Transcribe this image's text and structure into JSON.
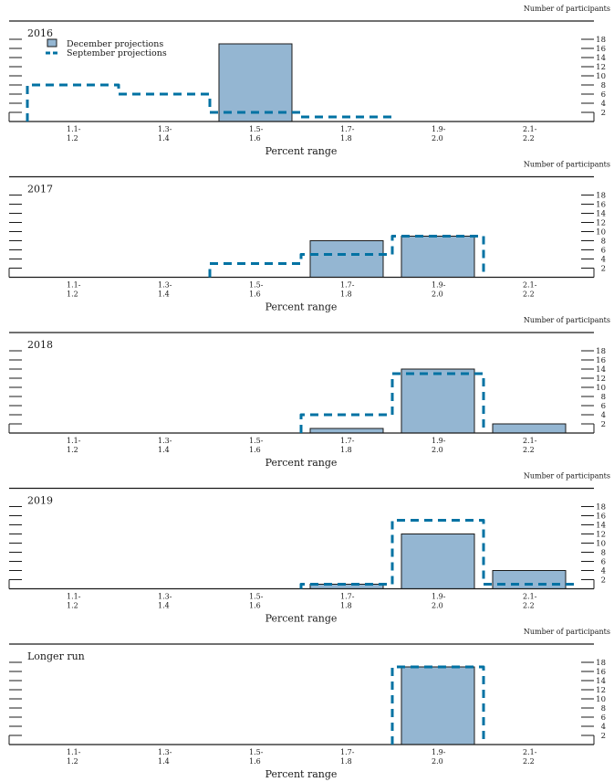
{
  "colors": {
    "december_fill": "#94b6d2",
    "december_stroke": "#1a1a1a",
    "september_line": "#0072a3",
    "axis": "#1a1a1a"
  },
  "legend": {
    "december": "December projections",
    "september": "September projections"
  },
  "chart_data": [
    {
      "type": "bar",
      "title": "2016",
      "xlabel": "Percent range",
      "ylabel": "Number of participants",
      "categories": [
        "1.1-1.2",
        "1.3-1.4",
        "1.5-1.6",
        "1.7-1.8",
        "1.9-2.0",
        "2.1-2.2"
      ],
      "category_labels": [
        [
          "1.1-",
          "1.2"
        ],
        [
          "1.3-",
          "1.4"
        ],
        [
          "1.5-",
          "1.6"
        ],
        [
          "1.7-",
          "1.8"
        ],
        [
          "1.9-",
          "2.0"
        ],
        [
          "2.1-",
          "2.2"
        ]
      ],
      "yticks": [
        2,
        4,
        6,
        8,
        10,
        12,
        14,
        16,
        18
      ],
      "ylim": [
        0,
        18
      ],
      "legend_position": "top-left",
      "series": [
        {
          "name": "December projections",
          "style": "bar",
          "values": [
            0,
            0,
            17,
            0,
            0,
            0
          ]
        },
        {
          "name": "September projections",
          "style": "dashed-step",
          "values": [
            8,
            6,
            2,
            1,
            0,
            0
          ]
        }
      ]
    },
    {
      "type": "bar",
      "title": "2017",
      "xlabel": "Percent range",
      "ylabel": "Number of participants",
      "categories": [
        "1.1-1.2",
        "1.3-1.4",
        "1.5-1.6",
        "1.7-1.8",
        "1.9-2.0",
        "2.1-2.2"
      ],
      "category_labels": [
        [
          "1.1-",
          "1.2"
        ],
        [
          "1.3-",
          "1.4"
        ],
        [
          "1.5-",
          "1.6"
        ],
        [
          "1.7-",
          "1.8"
        ],
        [
          "1.9-",
          "2.0"
        ],
        [
          "2.1-",
          "2.2"
        ]
      ],
      "yticks": [
        2,
        4,
        6,
        8,
        10,
        12,
        14,
        16,
        18
      ],
      "ylim": [
        0,
        18
      ],
      "series": [
        {
          "name": "December projections",
          "style": "bar",
          "values": [
            0,
            0,
            0,
            8,
            9,
            0
          ]
        },
        {
          "name": "September projections",
          "style": "dashed-step",
          "values": [
            0,
            0,
            3,
            5,
            9,
            0
          ]
        }
      ]
    },
    {
      "type": "bar",
      "title": "2018",
      "xlabel": "Percent range",
      "ylabel": "Number of participants",
      "categories": [
        "1.1-1.2",
        "1.3-1.4",
        "1.5-1.6",
        "1.7-1.8",
        "1.9-2.0",
        "2.1-2.2"
      ],
      "category_labels": [
        [
          "1.1-",
          "1.2"
        ],
        [
          "1.3-",
          "1.4"
        ],
        [
          "1.5-",
          "1.6"
        ],
        [
          "1.7-",
          "1.8"
        ],
        [
          "1.9-",
          "2.0"
        ],
        [
          "2.1-",
          "2.2"
        ]
      ],
      "yticks": [
        2,
        4,
        6,
        8,
        10,
        12,
        14,
        16,
        18
      ],
      "ylim": [
        0,
        18
      ],
      "series": [
        {
          "name": "December projections",
          "style": "bar",
          "values": [
            0,
            0,
            0,
            1,
            14,
            2
          ]
        },
        {
          "name": "September projections",
          "style": "dashed-step",
          "values": [
            0,
            0,
            0,
            4,
            13,
            0
          ]
        }
      ]
    },
    {
      "type": "bar",
      "title": "2019",
      "xlabel": "Percent range",
      "ylabel": "Number of participants",
      "categories": [
        "1.1-1.2",
        "1.3-1.4",
        "1.5-1.6",
        "1.7-1.8",
        "1.9-2.0",
        "2.1-2.2"
      ],
      "category_labels": [
        [
          "1.1-",
          "1.2"
        ],
        [
          "1.3-",
          "1.4"
        ],
        [
          "1.5-",
          "1.6"
        ],
        [
          "1.7-",
          "1.8"
        ],
        [
          "1.9-",
          "2.0"
        ],
        [
          "2.1-",
          "2.2"
        ]
      ],
      "yticks": [
        2,
        4,
        6,
        8,
        10,
        12,
        14,
        16,
        18
      ],
      "ylim": [
        0,
        18
      ],
      "series": [
        {
          "name": "December projections",
          "style": "bar",
          "values": [
            0,
            0,
            0,
            1,
            12,
            4
          ]
        },
        {
          "name": "September projections",
          "style": "dashed-step",
          "values": [
            0,
            0,
            0,
            1,
            15,
            1
          ]
        }
      ]
    },
    {
      "type": "bar",
      "title": "Longer run",
      "xlabel": "Percent range",
      "ylabel": "Number of participants",
      "categories": [
        "1.1-1.2",
        "1.3-1.4",
        "1.5-1.6",
        "1.7-1.8",
        "1.9-2.0",
        "2.1-2.2"
      ],
      "category_labels": [
        [
          "1.1-",
          "1.2"
        ],
        [
          "1.3-",
          "1.4"
        ],
        [
          "1.5-",
          "1.6"
        ],
        [
          "1.7-",
          "1.8"
        ],
        [
          "1.9-",
          "2.0"
        ],
        [
          "2.1-",
          "2.2"
        ]
      ],
      "yticks": [
        2,
        4,
        6,
        8,
        10,
        12,
        14,
        16,
        18
      ],
      "ylim": [
        0,
        18
      ],
      "series": [
        {
          "name": "December projections",
          "style": "bar",
          "values": [
            0,
            0,
            0,
            0,
            17,
            0
          ]
        },
        {
          "name": "September projections",
          "style": "dashed-step",
          "values": [
            0,
            0,
            0,
            0,
            17,
            0
          ]
        }
      ]
    }
  ]
}
